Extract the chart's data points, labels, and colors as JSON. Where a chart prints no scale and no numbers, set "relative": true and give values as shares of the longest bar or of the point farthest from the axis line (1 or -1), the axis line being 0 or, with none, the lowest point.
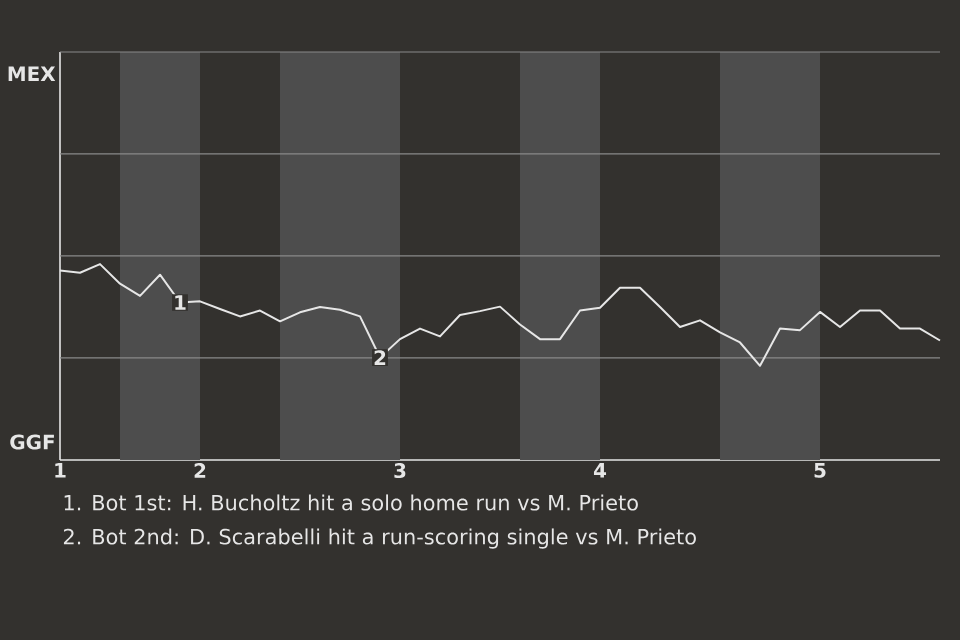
{
  "chart_data": {
    "type": "line",
    "relative": true,
    "categories": [
      "1",
      null,
      null,
      null,
      null,
      null,
      null,
      "2",
      null,
      null,
      null,
      null,
      null,
      null,
      null,
      null,
      null,
      "3",
      null,
      null,
      null,
      null,
      null,
      null,
      null,
      null,
      null,
      "4",
      null,
      null,
      null,
      null,
      null,
      null,
      null,
      null,
      null,
      null,
      "5",
      null,
      null,
      null,
      null,
      null,
      null
    ],
    "series": [
      {
        "color": "#e6e6e6",
        "values": [
          0.967,
          0.956,
          1,
          0.9,
          0.838,
          0.946,
          0.804,
          0.81,
          0.771,
          0.733,
          0.763,
          0.708,
          0.754,
          0.781,
          0.767,
          0.733,
          0.523,
          0.617,
          0.671,
          0.631,
          0.74,
          0.76,
          0.783,
          0.692,
          0.617,
          0.617,
          0.763,
          0.777,
          0.879,
          0.879,
          0.781,
          0.679,
          0.713,
          0.652,
          0.6,
          0.481,
          0.671,
          0.663,
          0.756,
          0.679,
          0.763,
          0.763,
          0.671,
          0.671,
          0.61
        ]
      }
    ],
    "ref_lines": [
      {
        "axis": "y",
        "value": 0.521,
        "color": "#8a8a8a"
      },
      {
        "axis": "y",
        "value": 1.042,
        "color": "#8a8a8a"
      },
      {
        "axis": "y",
        "value": 1.563,
        "color": "#8a8a8a"
      },
      {
        "axis": "y",
        "value": 2.083,
        "color": "#8a8a8a"
      }
    ],
    "marker": "none",
    "line_style": "solid",
    "annotations": [
      {
        "text": "1",
        "y": 0.804
      },
      {
        "text": "2",
        "y": 0.523
      },
      "MEX",
      "GGF",
      "1. Bot 1st: H. Bucholtz hit a solo home run vs M. Prieto",
      "2. Bot 2nd: D. Scarabelli hit a run-scoring single vs M. Prieto"
    ]
  }
}
